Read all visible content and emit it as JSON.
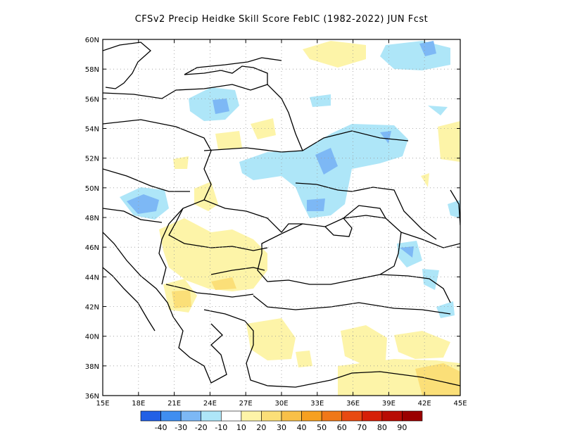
{
  "title": "CFSv2 Precip Heidke Skill Score FebIC (1982-2022) JUN Fcst",
  "lat_labels": [
    "60N",
    "58N",
    "56N",
    "54N",
    "52N",
    "50N",
    "48N",
    "46N",
    "44N",
    "42N",
    "40N",
    "38N",
    "36N"
  ],
  "lon_labels": [
    "15E",
    "18E",
    "21E",
    "24E",
    "27E",
    "30E",
    "33E",
    "36E",
    "39E",
    "42E",
    "45E"
  ],
  "colorbar": {
    "colors": [
      "#2260e6",
      "#3f8ef0",
      "#7db8f5",
      "#aee6f8",
      "#ffffff",
      "#fdf4a8",
      "#fbdf78",
      "#f8c048",
      "#f6a020",
      "#f07818",
      "#e84a12",
      "#d62008",
      "#b80c04",
      "#9a0000"
    ],
    "labels": [
      "-40",
      "-30",
      "-20",
      "-10",
      "10",
      "20",
      "30",
      "40",
      "50",
      "60",
      "70",
      "80",
      "90"
    ]
  }
}
